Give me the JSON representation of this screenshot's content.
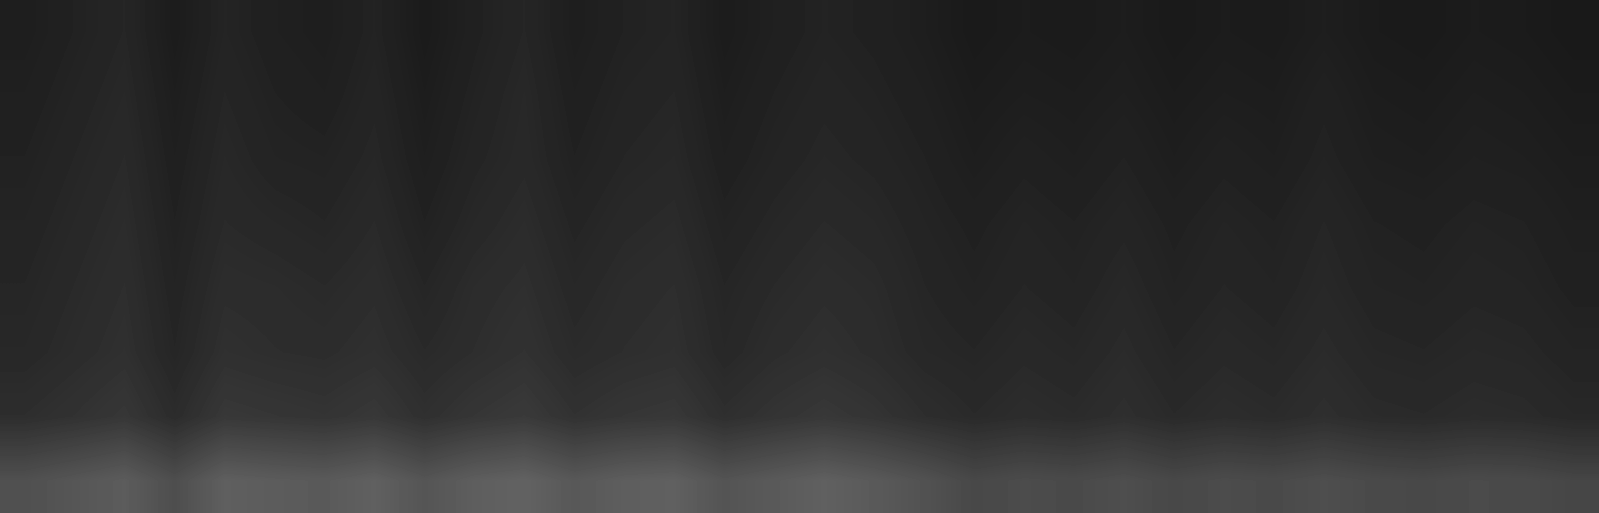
{
  "chart_data": {
    "type": "heatmap",
    "tick_labels": false,
    "color": "gray",
    "color_range": [
      0,
      255
    ],
    "cells": [
      [
        30,
        34,
        38,
        28,
        36,
        32,
        30,
        35,
        27,
        33,
        38,
        30,
        34,
        36,
        28,
        32,
        35,
        33,
        30,
        26,
        28,
        27,
        29,
        26,
        28,
        27,
        30,
        27,
        26,
        28,
        27,
        25
      ],
      [
        32,
        36,
        40,
        30,
        38,
        34,
        32,
        37,
        29,
        35,
        40,
        32,
        36,
        38,
        30,
        34,
        37,
        35,
        32,
        28,
        30,
        29,
        31,
        28,
        30,
        29,
        33,
        29,
        28,
        30,
        29,
        27
      ],
      [
        34,
        38,
        42,
        32,
        40,
        36,
        35,
        39,
        31,
        37,
        41,
        34,
        38,
        40,
        32,
        36,
        39,
        37,
        34,
        30,
        33,
        31,
        34,
        30,
        33,
        31,
        35,
        31,
        30,
        32,
        31,
        29
      ],
      [
        36,
        40,
        44,
        34,
        42,
        40,
        38,
        42,
        34,
        40,
        44,
        37,
        41,
        43,
        35,
        39,
        42,
        40,
        36,
        33,
        36,
        34,
        37,
        33,
        36,
        34,
        38,
        34,
        33,
        35,
        34,
        31
      ],
      [
        38,
        42,
        46,
        36,
        45,
        44,
        42,
        45,
        38,
        44,
        47,
        40,
        44,
        46,
        38,
        42,
        45,
        43,
        38,
        35,
        38,
        36,
        40,
        35,
        38,
        36,
        40,
        36,
        35,
        37,
        36,
        33
      ],
      [
        40,
        44,
        48,
        38,
        48,
        46,
        45,
        48,
        42,
        46,
        50,
        43,
        46,
        48,
        40,
        45,
        48,
        45,
        40,
        38,
        41,
        39,
        43,
        38,
        41,
        39,
        43,
        39,
        38,
        40,
        39,
        36
      ],
      [
        46,
        50,
        55,
        44,
        56,
        54,
        52,
        56,
        48,
        54,
        58,
        50,
        54,
        56,
        47,
        52,
        56,
        52,
        46,
        42,
        45,
        43,
        47,
        42,
        45,
        43,
        47,
        43,
        42,
        44,
        43,
        40
      ],
      [
        80,
        86,
        92,
        78,
        95,
        92,
        90,
        96,
        85,
        94,
        98,
        88,
        94,
        96,
        84,
        90,
        96,
        90,
        82,
        72,
        76,
        74,
        78,
        72,
        76,
        74,
        78,
        74,
        72,
        75,
        74,
        70
      ]
    ]
  }
}
